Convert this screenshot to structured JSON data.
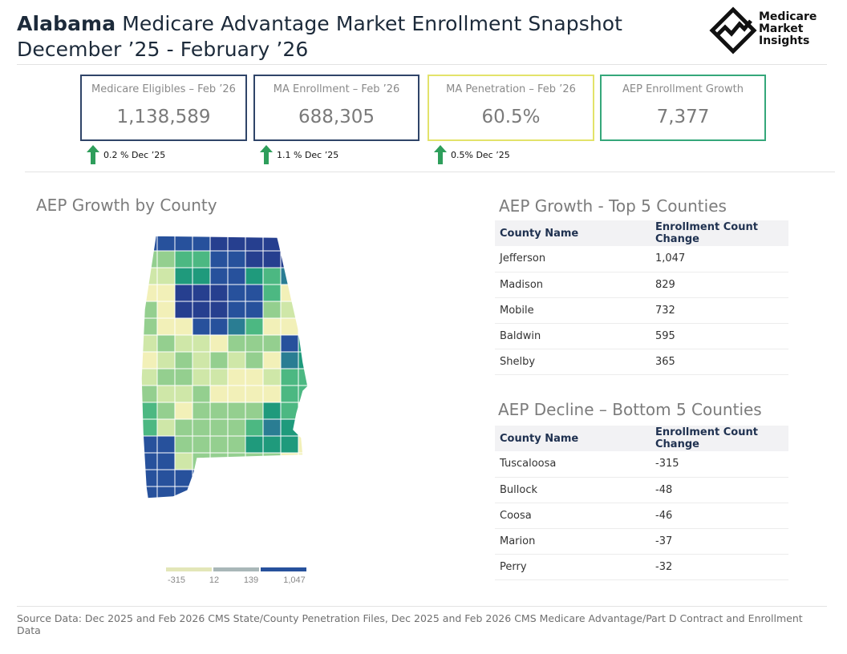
{
  "header": {
    "title_state": "Alabama",
    "title_rest": " Medicare Advantage Market Enrollment Snapshot",
    "title_line2": "December ’25 - February ’26",
    "logo_line1": "Medicare",
    "logo_line2": "Market",
    "logo_line3": "Insights"
  },
  "kpis": [
    {
      "label": "Medicare Eligibles – Feb ’26",
      "value": "1,138,589",
      "border": "#2f4468"
    },
    {
      "label": "MA Enrollment – Feb ’26",
      "value": "688,305",
      "border": "#2f4468"
    },
    {
      "label": "MA Penetration – Feb ’26",
      "value": "60.5%",
      "border": "#e3e36a"
    },
    {
      "label": "AEP Enrollment Growth",
      "value": "7,377",
      "border": "#35a77a"
    }
  ],
  "deltas": [
    {
      "text": "0.2 % Dec ’25"
    },
    {
      "text": "1.1 % Dec ’25"
    },
    {
      "text": "0.5% Dec ’25"
    }
  ],
  "colors": {
    "up_arrow": "#2e9e5b",
    "c0": "#f2f0b8",
    "c1": "#cfe7a8",
    "c2": "#94cf8f",
    "c3": "#4cb882",
    "c4": "#1f9a7c",
    "c5": "#2a7d93",
    "c6": "#27519c",
    "c7": "#263f8f"
  },
  "map_section": {
    "title": "AEP Growth by County",
    "icons": [
      "alabama-county-map-icon"
    ],
    "legend_ticks": [
      "-315",
      "12",
      "139",
      "1,047"
    ]
  },
  "top5": {
    "title": "AEP Growth - Top 5 Counties",
    "headers": [
      "County Name",
      "Enrollment Count Change"
    ],
    "rows": [
      {
        "county": "Jefferson",
        "change": "1,047"
      },
      {
        "county": "Madison",
        "change": "829"
      },
      {
        "county": "Mobile",
        "change": "732"
      },
      {
        "county": "Baldwin",
        "change": "595"
      },
      {
        "county": "Shelby",
        "change": "365"
      }
    ]
  },
  "bottom5": {
    "title": "AEP Decline – Bottom 5 Counties",
    "headers": [
      "County Name",
      "Enrollment Count Change"
    ],
    "rows": [
      {
        "county": "Tuscaloosa",
        "change": "-315"
      },
      {
        "county": "Bullock",
        "change": "-48"
      },
      {
        "county": "Coosa",
        "change": "-46"
      },
      {
        "county": "Marion",
        "change": "-37"
      },
      {
        "county": "Perry",
        "change": "-32"
      }
    ]
  },
  "chart_data": {
    "type": "choropleth",
    "title": "AEP Growth by County",
    "value_label": "Enrollment Count Change",
    "color_scale_ticks": [
      -315,
      12,
      139,
      1047
    ],
    "categories": [
      "Jefferson",
      "Madison",
      "Mobile",
      "Baldwin",
      "Shelby",
      "Tuscaloosa",
      "Bullock",
      "Coosa",
      "Marion",
      "Perry"
    ],
    "values": [
      1047,
      829,
      732,
      595,
      365,
      -315,
      -48,
      -46,
      -37,
      -32
    ]
  },
  "footer": {
    "source": "Source Data: Dec 2025 and Feb 2026 CMS State/County Penetration Files, Dec 2025 and Feb 2026 CMS Medicare Advantage/Part D Contract and Enrollment Data"
  }
}
